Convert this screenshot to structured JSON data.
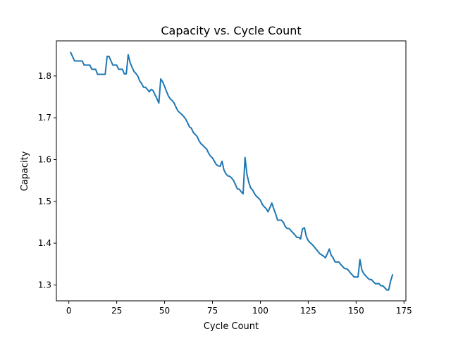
{
  "chart_data": {
    "type": "line",
    "title": "Capacity vs. Cycle Count",
    "xlabel": "Cycle Count",
    "ylabel": "Capacity",
    "xlim": [
      -6.5,
      176
    ],
    "ylim": [
      1.262,
      1.884
    ],
    "grid": false,
    "xticks": [
      0,
      25,
      50,
      75,
      100,
      125,
      150,
      175
    ],
    "xtick_labels": [
      "0",
      "25",
      "50",
      "75",
      "100",
      "125",
      "150",
      "175"
    ],
    "yticks": [
      1.3,
      1.4,
      1.5,
      1.6,
      1.7,
      1.8
    ],
    "ytick_labels": [
      "1.3",
      "1.4",
      "1.5",
      "1.6",
      "1.7",
      "1.8"
    ],
    "line_color": "#1f77b4",
    "series": [
      {
        "points": [
          [
            1,
            1.856
          ],
          [
            2,
            1.846
          ],
          [
            3,
            1.836
          ],
          [
            4,
            1.836
          ],
          [
            5,
            1.836
          ],
          [
            6,
            1.836
          ],
          [
            7,
            1.836
          ],
          [
            8,
            1.826
          ],
          [
            9,
            1.826
          ],
          [
            10,
            1.826
          ],
          [
            11,
            1.826
          ],
          [
            12,
            1.816
          ],
          [
            13,
            1.816
          ],
          [
            14,
            1.816
          ],
          [
            15,
            1.804
          ],
          [
            16,
            1.804
          ],
          [
            17,
            1.804
          ],
          [
            18,
            1.804
          ],
          [
            19,
            1.804
          ],
          [
            20,
            1.847
          ],
          [
            21,
            1.847
          ],
          [
            22,
            1.836
          ],
          [
            23,
            1.826
          ],
          [
            24,
            1.826
          ],
          [
            25,
            1.826
          ],
          [
            26,
            1.816
          ],
          [
            27,
            1.816
          ],
          [
            28,
            1.816
          ],
          [
            29,
            1.805
          ],
          [
            30,
            1.805
          ],
          [
            31,
            1.851
          ],
          [
            32,
            1.832
          ],
          [
            33,
            1.821
          ],
          [
            34,
            1.811
          ],
          [
            35,
            1.806
          ],
          [
            36,
            1.8
          ],
          [
            37,
            1.788
          ],
          [
            38,
            1.782
          ],
          [
            39,
            1.773
          ],
          [
            40,
            1.773
          ],
          [
            41,
            1.768
          ],
          [
            42,
            1.762
          ],
          [
            43,
            1.768
          ],
          [
            44,
            1.765
          ],
          [
            45,
            1.755
          ],
          [
            46,
            1.746
          ],
          [
            47,
            1.735
          ],
          [
            48,
            1.793
          ],
          [
            49,
            1.786
          ],
          [
            50,
            1.775
          ],
          [
            51,
            1.763
          ],
          [
            52,
            1.752
          ],
          [
            53,
            1.745
          ],
          [
            54,
            1.741
          ],
          [
            55,
            1.735
          ],
          [
            56,
            1.725
          ],
          [
            57,
            1.716
          ],
          [
            58,
            1.712
          ],
          [
            59,
            1.708
          ],
          [
            60,
            1.703
          ],
          [
            61,
            1.697
          ],
          [
            62,
            1.688
          ],
          [
            63,
            1.678
          ],
          [
            64,
            1.675
          ],
          [
            65,
            1.665
          ],
          [
            66,
            1.66
          ],
          [
            67,
            1.655
          ],
          [
            68,
            1.645
          ],
          [
            69,
            1.638
          ],
          [
            70,
            1.634
          ],
          [
            71,
            1.629
          ],
          [
            72,
            1.625
          ],
          [
            73,
            1.615
          ],
          [
            74,
            1.608
          ],
          [
            75,
            1.604
          ],
          [
            76,
            1.596
          ],
          [
            77,
            1.588
          ],
          [
            78,
            1.585
          ],
          [
            79,
            1.584
          ],
          [
            80,
            1.596
          ],
          [
            81,
            1.575
          ],
          [
            82,
            1.566
          ],
          [
            83,
            1.561
          ],
          [
            84,
            1.56
          ],
          [
            85,
            1.556
          ],
          [
            86,
            1.55
          ],
          [
            87,
            1.54
          ],
          [
            88,
            1.53
          ],
          [
            89,
            1.529
          ],
          [
            90,
            1.523
          ],
          [
            91,
            1.518
          ],
          [
            92,
            1.605
          ],
          [
            93,
            1.565
          ],
          [
            94,
            1.545
          ],
          [
            95,
            1.532
          ],
          [
            96,
            1.527
          ],
          [
            97,
            1.518
          ],
          [
            98,
            1.512
          ],
          [
            99,
            1.508
          ],
          [
            100,
            1.503
          ],
          [
            101,
            1.493
          ],
          [
            102,
            1.487
          ],
          [
            103,
            1.483
          ],
          [
            104,
            1.475
          ],
          [
            105,
            1.485
          ],
          [
            106,
            1.496
          ],
          [
            107,
            1.482
          ],
          [
            108,
            1.47
          ],
          [
            109,
            1.455
          ],
          [
            110,
            1.455
          ],
          [
            111,
            1.455
          ],
          [
            112,
            1.45
          ],
          [
            113,
            1.44
          ],
          [
            114,
            1.435
          ],
          [
            115,
            1.435
          ],
          [
            116,
            1.43
          ],
          [
            117,
            1.425
          ],
          [
            118,
            1.42
          ],
          [
            119,
            1.414
          ],
          [
            120,
            1.414
          ],
          [
            121,
            1.41
          ],
          [
            122,
            1.434
          ],
          [
            123,
            1.437
          ],
          [
            124,
            1.416
          ],
          [
            125,
            1.406
          ],
          [
            126,
            1.401
          ],
          [
            127,
            1.397
          ],
          [
            128,
            1.392
          ],
          [
            129,
            1.386
          ],
          [
            130,
            1.381
          ],
          [
            131,
            1.375
          ],
          [
            132,
            1.372
          ],
          [
            133,
            1.369
          ],
          [
            134,
            1.365
          ],
          [
            135,
            1.375
          ],
          [
            136,
            1.386
          ],
          [
            137,
            1.371
          ],
          [
            138,
            1.365
          ],
          [
            139,
            1.355
          ],
          [
            140,
            1.355
          ],
          [
            141,
            1.355
          ],
          [
            142,
            1.349
          ],
          [
            143,
            1.344
          ],
          [
            144,
            1.339
          ],
          [
            145,
            1.339
          ],
          [
            146,
            1.335
          ],
          [
            147,
            1.329
          ],
          [
            148,
            1.324
          ],
          [
            149,
            1.319
          ],
          [
            150,
            1.319
          ],
          [
            151,
            1.319
          ],
          [
            152,
            1.361
          ],
          [
            153,
            1.336
          ],
          [
            154,
            1.327
          ],
          [
            155,
            1.322
          ],
          [
            156,
            1.317
          ],
          [
            157,
            1.313
          ],
          [
            158,
            1.313
          ],
          [
            159,
            1.308
          ],
          [
            160,
            1.303
          ],
          [
            161,
            1.303
          ],
          [
            162,
            1.303
          ],
          [
            163,
            1.298
          ],
          [
            164,
            1.298
          ],
          [
            165,
            1.293
          ],
          [
            166,
            1.288
          ],
          [
            167,
            1.288
          ],
          [
            168,
            1.309
          ],
          [
            169,
            1.324
          ]
        ]
      }
    ]
  }
}
